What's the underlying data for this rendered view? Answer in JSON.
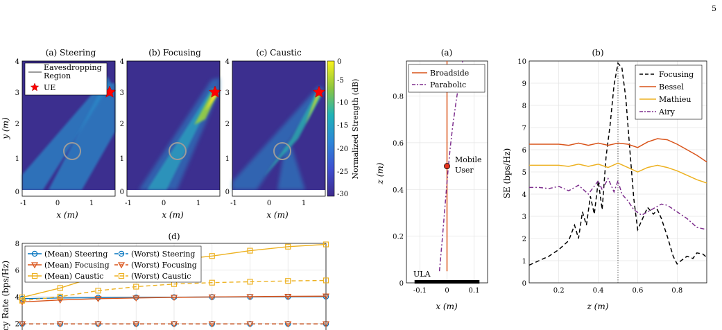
{
  "page_number": "5",
  "heatmap_common": {
    "xlabel": "x (m)",
    "ylabel": "y (m)",
    "xticks": [
      "-1",
      "0",
      "1"
    ],
    "yticks": [
      "0",
      "1",
      "2",
      "3",
      "4"
    ],
    "colorbar_label": "Normalized Strength (dB)",
    "colorbar_ticks": [
      "0",
      "-5",
      "-10",
      "-15",
      "-20",
      "-25",
      "-30"
    ],
    "legend": {
      "region": "Eavesdropping Region",
      "region_line1": "Eavesdropping",
      "region_line2": "Region",
      "ue": "UE"
    },
    "colors": {
      "background": "#3c2f8f",
      "beam": "#2a88c8",
      "hot": "#f6e22e",
      "region": "#9b9b9b",
      "ue": "#ff0000"
    }
  },
  "chart_data": [
    {
      "id": "a",
      "type": "heatmap",
      "title": "(a) Steering",
      "xlim": [
        -1,
        1.8
      ],
      "ylim": [
        0,
        4
      ],
      "ue": [
        1.55,
        3.0
      ],
      "region": {
        "center": [
          0.4,
          1.25
        ],
        "radius": 0.25
      }
    },
    {
      "id": "b",
      "type": "heatmap",
      "title": "(b) Focusing",
      "xlim": [
        -1,
        1.8
      ],
      "ylim": [
        0,
        4
      ],
      "ue": [
        1.55,
        3.0
      ],
      "region": {
        "center": [
          0.4,
          1.25
        ],
        "radius": 0.25
      }
    },
    {
      "id": "c",
      "type": "heatmap",
      "title": "(c) Caustic",
      "xlim": [
        -1,
        1.8
      ],
      "ylim": [
        0,
        4
      ],
      "ue": [
        1.55,
        3.0
      ],
      "region": {
        "center": [
          0.4,
          1.25
        ],
        "radius": 0.25
      }
    },
    {
      "id": "d",
      "type": "line",
      "title": "(d)",
      "ylabel": "ecy Rate (bps/Hz)",
      "xlim": [
        0,
        8
      ],
      "ylim": [
        1.5,
        8
      ],
      "yticks": [
        "2",
        "4",
        "6",
        "8"
      ],
      "x": [
        0,
        1,
        2,
        3,
        4,
        5,
        6,
        7,
        8
      ],
      "series": [
        {
          "name": "(Mean) Steering",
          "color": "#0072bd",
          "dash": false,
          "marker": "circle",
          "values": [
            3.85,
            3.9,
            3.92,
            3.94,
            3.96,
            3.97,
            3.98,
            3.99,
            4.0
          ]
        },
        {
          "name": "(Mean) Focusing",
          "color": "#d95319",
          "dash": false,
          "marker": "triangle",
          "values": [
            3.6,
            3.75,
            3.85,
            3.9,
            3.95,
            3.98,
            4.0,
            4.02,
            4.04
          ]
        },
        {
          "name": "(Mean) Caustic",
          "color": "#edb120",
          "dash": false,
          "marker": "square",
          "values": [
            3.95,
            4.65,
            5.55,
            6.25,
            6.75,
            7.05,
            7.45,
            7.75,
            7.92
          ]
        },
        {
          "name": "(Worst) Steering",
          "color": "#0072bd",
          "dash": true,
          "marker": "circle",
          "values": [
            1.96,
            1.96,
            1.96,
            1.96,
            1.96,
            1.96,
            1.96,
            1.96,
            1.96
          ]
        },
        {
          "name": "(Worst) Focusing",
          "color": "#d95319",
          "dash": true,
          "marker": "triangle",
          "values": [
            1.96,
            1.96,
            1.96,
            1.96,
            1.96,
            1.96,
            1.96,
            1.96,
            1.96
          ]
        },
        {
          "name": "(Worst) Caustic",
          "color": "#edb120",
          "dash": true,
          "marker": "square",
          "values": [
            3.7,
            4.0,
            4.45,
            4.75,
            4.95,
            5.05,
            5.12,
            5.18,
            5.22
          ]
        }
      ]
    },
    {
      "id": "e",
      "type": "line",
      "title": "(a)",
      "xlabel": "x (m)",
      "ylabel": "z (m)",
      "xlim": [
        -0.15,
        0.15
      ],
      "ylim": [
        0,
        0.95
      ],
      "xticks": [
        -0.1,
        0,
        0.1
      ],
      "yticks": [
        0,
        0.2,
        0.4,
        0.6,
        0.8
      ],
      "xtick_labels": [
        "-0.1",
        "0",
        "0.1"
      ],
      "ytick_labels": [
        "0",
        "0.2",
        "0.4",
        "0.6",
        "0.8"
      ],
      "series": [
        {
          "name": "Broadside",
          "color": "#d95319",
          "dash": false,
          "x": [
            0,
            0
          ],
          "y": [
            0.05,
            0.95
          ]
        },
        {
          "name": "Parabolic",
          "color": "#7e2f8e",
          "dash": true,
          "x": [
            -0.028,
            -0.018,
            -0.008,
            0.002,
            0.012,
            0.022,
            0.034,
            0.046,
            0.058
          ],
          "y": [
            0.05,
            0.18,
            0.32,
            0.46,
            0.58,
            0.68,
            0.78,
            0.87,
            0.95
          ]
        }
      ],
      "user_point": {
        "x": 0,
        "y": 0.5,
        "color": "#e8321e"
      },
      "user_label_line1": "Mobile",
      "user_label_line2": "User",
      "ula_label": "ULA",
      "ula_range": [
        -0.12,
        0.12
      ]
    },
    {
      "id": "f",
      "type": "line",
      "title": "(b)",
      "xlabel": "z (m)",
      "ylabel": "SE (bps/Hz)",
      "xlim": [
        0.05,
        0.95
      ],
      "ylim": [
        0,
        10
      ],
      "xticks": [
        0.2,
        0.4,
        0.6,
        0.8
      ],
      "yticks": [
        0,
        1,
        2,
        3,
        4,
        5,
        6,
        7,
        8,
        9,
        10
      ],
      "xtick_labels": [
        "0.2",
        "0.4",
        "0.6",
        "0.8"
      ],
      "ytick_labels": [
        "0",
        "1",
        "2",
        "3",
        "4",
        "5",
        "6",
        "7",
        "8",
        "9",
        "10"
      ],
      "vline_x": 0.5,
      "series": [
        {
          "name": "Focusing",
          "color": "#000000",
          "dash": true,
          "x": [
            0.05,
            0.1,
            0.15,
            0.2,
            0.25,
            0.28,
            0.3,
            0.32,
            0.34,
            0.36,
            0.38,
            0.4,
            0.42,
            0.44,
            0.46,
            0.48,
            0.5,
            0.52,
            0.54,
            0.56,
            0.58,
            0.6,
            0.62,
            0.65,
            0.68,
            0.7,
            0.72,
            0.75,
            0.78,
            0.8,
            0.82,
            0.85,
            0.88,
            0.9,
            0.93,
            0.95
          ],
          "values": [
            0.8,
            1.0,
            1.2,
            1.5,
            1.9,
            2.6,
            2.0,
            3.2,
            2.6,
            3.9,
            3.1,
            4.6,
            3.3,
            5.7,
            7.1,
            8.9,
            9.9,
            9.7,
            8.3,
            6.0,
            3.8,
            2.4,
            2.8,
            3.4,
            3.1,
            3.3,
            2.9,
            2.1,
            1.2,
            0.85,
            1.0,
            1.2,
            1.1,
            1.35,
            1.3,
            1.15
          ]
        },
        {
          "name": "Bessel",
          "color": "#d95319",
          "dash": false,
          "x": [
            0.05,
            0.2,
            0.25,
            0.3,
            0.35,
            0.4,
            0.45,
            0.5,
            0.55,
            0.6,
            0.65,
            0.7,
            0.75,
            0.8,
            0.85,
            0.9,
            0.95
          ],
          "values": [
            6.25,
            6.25,
            6.2,
            6.3,
            6.2,
            6.3,
            6.2,
            6.3,
            6.25,
            6.1,
            6.35,
            6.5,
            6.45,
            6.25,
            6.0,
            5.75,
            5.45
          ]
        },
        {
          "name": "Mathieu",
          "color": "#edb120",
          "dash": false,
          "x": [
            0.05,
            0.2,
            0.25,
            0.3,
            0.35,
            0.4,
            0.45,
            0.5,
            0.55,
            0.6,
            0.65,
            0.7,
            0.75,
            0.8,
            0.85,
            0.9,
            0.95
          ],
          "values": [
            5.3,
            5.3,
            5.25,
            5.35,
            5.25,
            5.35,
            5.2,
            5.4,
            5.2,
            5.0,
            5.2,
            5.3,
            5.2,
            5.05,
            4.85,
            4.65,
            4.5
          ]
        },
        {
          "name": "Airy",
          "color": "#7e2f8e",
          "dash": true,
          "x": [
            0.05,
            0.1,
            0.15,
            0.2,
            0.25,
            0.3,
            0.35,
            0.4,
            0.42,
            0.45,
            0.48,
            0.5,
            0.52,
            0.55,
            0.58,
            0.62,
            0.65,
            0.68,
            0.72,
            0.75,
            0.8,
            0.85,
            0.9,
            0.95
          ],
          "values": [
            4.3,
            4.3,
            4.25,
            4.35,
            4.15,
            4.4,
            4.0,
            4.6,
            4.2,
            4.7,
            4.1,
            4.6,
            4.0,
            3.7,
            3.3,
            3.05,
            3.2,
            3.35,
            3.55,
            3.5,
            3.2,
            2.9,
            2.5,
            2.4
          ]
        }
      ]
    }
  ]
}
